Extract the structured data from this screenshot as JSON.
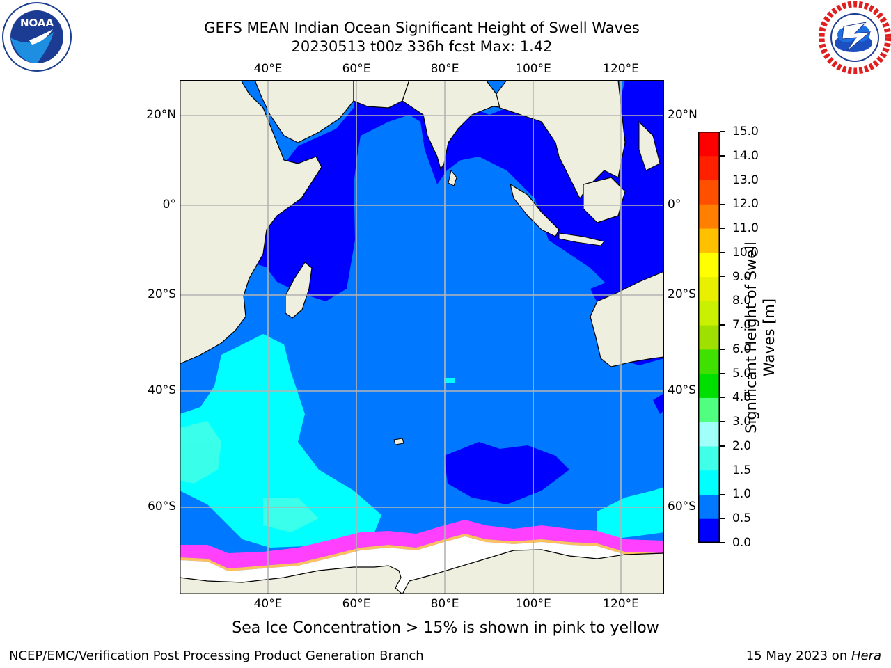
{
  "title": {
    "line1": "GEFS MEAN Indian Ocean Significant Height of Swell Waves",
    "line2": "20230513 t00z 336h fcst   Max: 1.42"
  },
  "map": {
    "lon_ticks": [
      "40°E",
      "60°E",
      "80°E",
      "100°E",
      "120°E"
    ],
    "lat_ticks": [
      "20°N",
      "0°",
      "20°S",
      "40°S",
      "60°S"
    ],
    "colors": {
      "land": "#efefdf",
      "sea_ice": "#ffffff",
      "gridline": "#b4b4b4",
      "coast": "#000000"
    }
  },
  "colorbar": {
    "label": "Significant Height of Swell Waves [m]",
    "label_line1": "Significant Height of Swell",
    "label_line2": "Waves [m]",
    "levels": [
      "0.0",
      "0.5",
      "1.0",
      "1.5",
      "2.0",
      "3.0",
      "4.0",
      "5.0",
      "6.0",
      "7.0",
      "8.0",
      "9.0",
      "10.0",
      "11.0",
      "12.0",
      "13.0",
      "14.0",
      "15.0"
    ],
    "colors": [
      "#0000ff",
      "#0078ff",
      "#00ffff",
      "#40ffe8",
      "#a0fff8",
      "#50ff80",
      "#00e000",
      "#40e000",
      "#a0e000",
      "#c8f000",
      "#e8f000",
      "#ffff00",
      "#ffc000",
      "#ff8000",
      "#ff5000",
      "#ff2000",
      "#ff0000"
    ]
  },
  "caption": "Sea Ice Concentration > 15% is shown in pink to yellow",
  "footer": {
    "left": "NCEP/EMC/Verification Post Processing Product Generation Branch",
    "date": "15 May 2023 on ",
    "host": "Hera"
  },
  "logos": {
    "left": {
      "name": "noaa-logo",
      "text": "NOAA"
    },
    "right": {
      "name": "national-weather-service-logo"
    }
  }
}
